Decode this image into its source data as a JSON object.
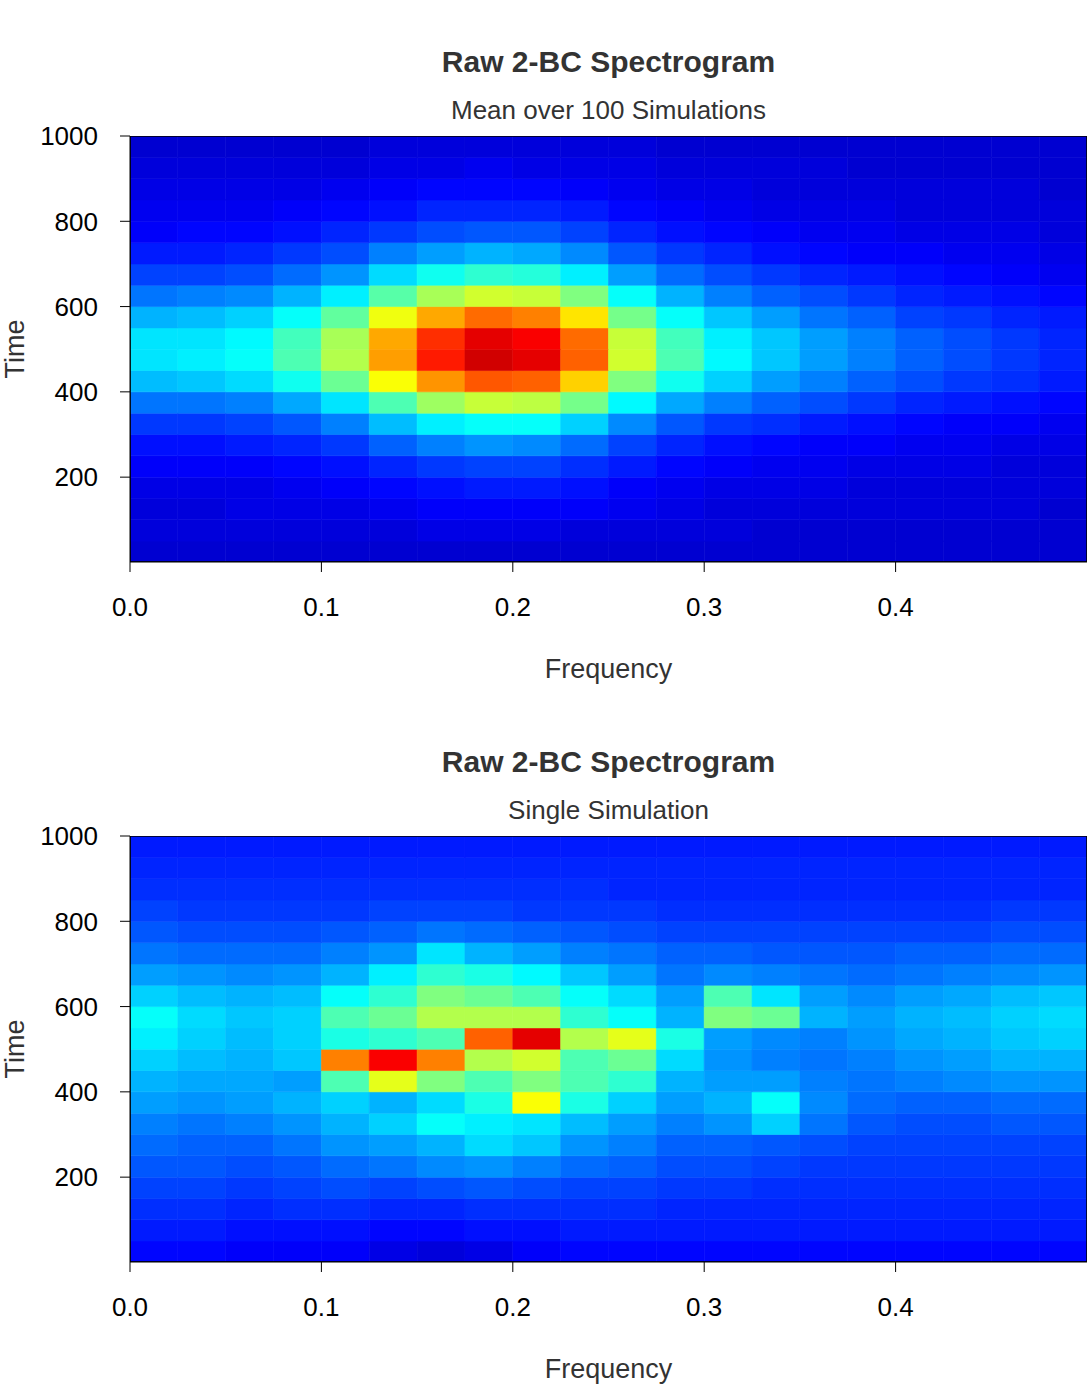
{
  "chart_data": [
    {
      "type": "heatmap",
      "title": "Raw 2-BC Spectrogram",
      "subtitle": "Mean over 100 Simulations",
      "x_label": "Frequency",
      "y_label": "Time",
      "xlim": [
        0,
        0.5
      ],
      "ylim": [
        1,
        1000
      ],
      "xticks": [
        {
          "value": 0,
          "label": "0.0"
        },
        0.1,
        0.2,
        0.3,
        0.4
      ],
      "yticks": [
        200,
        400,
        600,
        800,
        1000
      ],
      "x_edges": [
        0,
        0.025,
        0.05,
        0.075,
        0.1,
        0.125,
        0.15,
        0.175,
        0.2,
        0.225,
        0.25,
        0.275,
        0.3,
        0.325,
        0.35,
        0.375,
        0.4,
        0.425,
        0.45,
        0.475,
        0.5
      ],
      "y_edges": [
        0,
        50,
        100,
        150,
        200,
        250,
        300,
        350,
        400,
        450,
        500,
        550,
        600,
        650,
        700,
        750,
        800,
        850,
        900,
        950,
        1000
      ],
      "zlim": [
        0,
        1
      ],
      "z": [
        [
          0.08,
          0.08,
          0.08,
          0.08,
          0.08,
          0.08,
          0.08,
          0.08,
          0.08,
          0.08,
          0.08,
          0.08,
          0.08,
          0.08,
          0.08,
          0.08,
          0.08,
          0.08,
          0.08,
          0.08
        ],
        [
          0.09,
          0.09,
          0.09,
          0.09,
          0.09,
          0.09,
          0.1,
          0.1,
          0.1,
          0.09,
          0.09,
          0.09,
          0.09,
          0.08,
          0.08,
          0.08,
          0.08,
          0.08,
          0.08,
          0.08
        ],
        [
          0.09,
          0.09,
          0.1,
          0.1,
          0.1,
          0.11,
          0.12,
          0.12,
          0.12,
          0.12,
          0.11,
          0.1,
          0.09,
          0.09,
          0.09,
          0.09,
          0.09,
          0.09,
          0.09,
          0.08
        ],
        [
          0.1,
          0.1,
          0.1,
          0.11,
          0.12,
          0.13,
          0.14,
          0.15,
          0.15,
          0.14,
          0.12,
          0.11,
          0.1,
          0.1,
          0.1,
          0.09,
          0.09,
          0.09,
          0.09,
          0.09
        ],
        [
          0.12,
          0.12,
          0.12,
          0.13,
          0.14,
          0.16,
          0.18,
          0.19,
          0.19,
          0.17,
          0.15,
          0.13,
          0.12,
          0.11,
          0.11,
          0.1,
          0.1,
          0.1,
          0.09,
          0.09
        ],
        [
          0.14,
          0.14,
          0.15,
          0.16,
          0.18,
          0.22,
          0.25,
          0.27,
          0.26,
          0.23,
          0.19,
          0.16,
          0.14,
          0.13,
          0.12,
          0.12,
          0.11,
          0.11,
          0.1,
          0.1
        ],
        [
          0.18,
          0.18,
          0.19,
          0.21,
          0.25,
          0.31,
          0.36,
          0.38,
          0.38,
          0.33,
          0.26,
          0.21,
          0.18,
          0.17,
          0.15,
          0.14,
          0.13,
          0.12,
          0.12,
          0.11
        ],
        [
          0.24,
          0.24,
          0.25,
          0.29,
          0.35,
          0.45,
          0.53,
          0.57,
          0.56,
          0.49,
          0.37,
          0.29,
          0.25,
          0.22,
          0.2,
          0.18,
          0.16,
          0.15,
          0.14,
          0.13
        ],
        [
          0.31,
          0.32,
          0.34,
          0.39,
          0.48,
          0.62,
          0.73,
          0.79,
          0.78,
          0.67,
          0.5,
          0.39,
          0.33,
          0.28,
          0.25,
          0.22,
          0.2,
          0.18,
          0.17,
          0.15
        ],
        [
          0.35,
          0.36,
          0.38,
          0.45,
          0.55,
          0.72,
          0.85,
          0.92,
          0.9,
          0.78,
          0.58,
          0.45,
          0.37,
          0.32,
          0.28,
          0.25,
          0.22,
          0.2,
          0.18,
          0.16
        ],
        [
          0.35,
          0.35,
          0.37,
          0.44,
          0.54,
          0.71,
          0.83,
          0.9,
          0.88,
          0.77,
          0.57,
          0.44,
          0.36,
          0.32,
          0.28,
          0.25,
          0.22,
          0.2,
          0.18,
          0.16
        ],
        [
          0.3,
          0.31,
          0.33,
          0.38,
          0.47,
          0.61,
          0.71,
          0.77,
          0.75,
          0.65,
          0.49,
          0.38,
          0.32,
          0.28,
          0.24,
          0.22,
          0.19,
          0.18,
          0.16,
          0.15
        ],
        [
          0.24,
          0.25,
          0.26,
          0.3,
          0.36,
          0.46,
          0.54,
          0.58,
          0.57,
          0.5,
          0.38,
          0.3,
          0.25,
          0.22,
          0.2,
          0.18,
          0.16,
          0.15,
          0.14,
          0.13
        ],
        [
          0.19,
          0.19,
          0.2,
          0.23,
          0.27,
          0.34,
          0.39,
          0.42,
          0.41,
          0.36,
          0.28,
          0.23,
          0.2,
          0.18,
          0.16,
          0.15,
          0.14,
          0.13,
          0.12,
          0.11
        ],
        [
          0.15,
          0.15,
          0.16,
          0.18,
          0.2,
          0.25,
          0.28,
          0.3,
          0.29,
          0.26,
          0.21,
          0.18,
          0.16,
          0.14,
          0.13,
          0.12,
          0.12,
          0.11,
          0.11,
          0.1
        ],
        [
          0.12,
          0.13,
          0.13,
          0.14,
          0.16,
          0.18,
          0.2,
          0.21,
          0.21,
          0.19,
          0.16,
          0.14,
          0.13,
          0.12,
          0.11,
          0.11,
          0.1,
          0.1,
          0.1,
          0.09
        ],
        [
          0.11,
          0.11,
          0.11,
          0.12,
          0.13,
          0.14,
          0.16,
          0.16,
          0.16,
          0.15,
          0.13,
          0.12,
          0.11,
          0.1,
          0.1,
          0.1,
          0.09,
          0.09,
          0.09,
          0.09
        ],
        [
          0.1,
          0.1,
          0.1,
          0.1,
          0.11,
          0.12,
          0.13,
          0.13,
          0.13,
          0.12,
          0.11,
          0.1,
          0.1,
          0.09,
          0.09,
          0.09,
          0.09,
          0.09,
          0.09,
          0.08
        ],
        [
          0.09,
          0.09,
          0.09,
          0.09,
          0.09,
          0.1,
          0.1,
          0.11,
          0.1,
          0.1,
          0.1,
          0.09,
          0.09,
          0.09,
          0.09,
          0.08,
          0.08,
          0.08,
          0.08,
          0.08
        ],
        [
          0.08,
          0.08,
          0.08,
          0.08,
          0.08,
          0.09,
          0.09,
          0.09,
          0.09,
          0.09,
          0.09,
          0.08,
          0.08,
          0.08,
          0.08,
          0.08,
          0.08,
          0.08,
          0.08,
          0.08
        ]
      ]
    },
    {
      "type": "heatmap",
      "title": "Raw 2-BC Spectrogram",
      "subtitle": "Single Simulation",
      "x_label": "Frequency",
      "y_label": "Time",
      "xlim": [
        0,
        0.5
      ],
      "ylim": [
        1,
        1000
      ],
      "xticks": [
        {
          "value": 0,
          "label": "0.0"
        },
        0.1,
        0.2,
        0.3,
        0.4
      ],
      "yticks": [
        200,
        400,
        600,
        800,
        1000
      ],
      "x_edges": [
        0,
        0.025,
        0.05,
        0.075,
        0.1,
        0.125,
        0.15,
        0.175,
        0.2,
        0.225,
        0.25,
        0.275,
        0.3,
        0.325,
        0.35,
        0.375,
        0.4,
        0.425,
        0.45,
        0.475,
        0.5
      ],
      "y_edges": [
        0,
        50,
        100,
        150,
        200,
        250,
        300,
        350,
        400,
        450,
        500,
        550,
        600,
        650,
        700,
        750,
        800,
        850,
        900,
        950,
        1000
      ],
      "zlim": [
        0,
        1
      ],
      "z": [
        [
          0.13,
          0.13,
          0.12,
          0.12,
          0.12,
          0.1,
          0.09,
          0.1,
          0.12,
          0.13,
          0.13,
          0.13,
          0.13,
          0.13,
          0.13,
          0.13,
          0.13,
          0.13,
          0.13,
          0.13
        ],
        [
          0.15,
          0.15,
          0.14,
          0.14,
          0.14,
          0.13,
          0.13,
          0.14,
          0.14,
          0.15,
          0.15,
          0.15,
          0.15,
          0.15,
          0.15,
          0.15,
          0.15,
          0.15,
          0.15,
          0.15
        ],
        [
          0.17,
          0.17,
          0.16,
          0.17,
          0.17,
          0.16,
          0.16,
          0.17,
          0.17,
          0.17,
          0.17,
          0.16,
          0.16,
          0.16,
          0.16,
          0.16,
          0.16,
          0.16,
          0.16,
          0.16
        ],
        [
          0.19,
          0.19,
          0.18,
          0.19,
          0.2,
          0.19,
          0.2,
          0.21,
          0.2,
          0.19,
          0.19,
          0.18,
          0.18,
          0.17,
          0.17,
          0.17,
          0.17,
          0.17,
          0.17,
          0.17
        ],
        [
          0.21,
          0.21,
          0.2,
          0.21,
          0.23,
          0.24,
          0.26,
          0.27,
          0.25,
          0.23,
          0.22,
          0.2,
          0.2,
          0.19,
          0.18,
          0.18,
          0.18,
          0.18,
          0.18,
          0.18
        ],
        [
          0.23,
          0.22,
          0.22,
          0.24,
          0.27,
          0.28,
          0.3,
          0.34,
          0.32,
          0.27,
          0.25,
          0.22,
          0.22,
          0.21,
          0.2,
          0.19,
          0.19,
          0.19,
          0.19,
          0.19
        ],
        [
          0.25,
          0.24,
          0.25,
          0.27,
          0.3,
          0.33,
          0.38,
          0.36,
          0.35,
          0.31,
          0.28,
          0.25,
          0.27,
          0.33,
          0.24,
          0.21,
          0.2,
          0.2,
          0.21,
          0.21
        ],
        [
          0.28,
          0.27,
          0.28,
          0.3,
          0.33,
          0.3,
          0.34,
          0.4,
          0.62,
          0.4,
          0.33,
          0.28,
          0.3,
          0.38,
          0.26,
          0.23,
          0.22,
          0.22,
          0.23,
          0.23
        ],
        [
          0.3,
          0.29,
          0.29,
          0.28,
          0.45,
          0.6,
          0.5,
          0.45,
          0.5,
          0.45,
          0.42,
          0.3,
          0.28,
          0.28,
          0.25,
          0.24,
          0.25,
          0.26,
          0.27,
          0.27
        ],
        [
          0.33,
          0.31,
          0.3,
          0.32,
          0.75,
          0.88,
          0.75,
          0.55,
          0.58,
          0.45,
          0.48,
          0.34,
          0.27,
          0.25,
          0.24,
          0.25,
          0.27,
          0.28,
          0.3,
          0.3
        ],
        [
          0.36,
          0.33,
          0.31,
          0.33,
          0.4,
          0.42,
          0.45,
          0.78,
          0.9,
          0.55,
          0.6,
          0.4,
          0.28,
          0.26,
          0.25,
          0.27,
          0.29,
          0.3,
          0.32,
          0.33
        ],
        [
          0.38,
          0.34,
          0.32,
          0.33,
          0.45,
          0.48,
          0.55,
          0.55,
          0.55,
          0.42,
          0.38,
          0.3,
          0.5,
          0.48,
          0.3,
          0.28,
          0.3,
          0.31,
          0.33,
          0.34
        ],
        [
          0.33,
          0.31,
          0.3,
          0.31,
          0.38,
          0.42,
          0.5,
          0.48,
          0.45,
          0.38,
          0.34,
          0.28,
          0.45,
          0.35,
          0.28,
          0.26,
          0.28,
          0.29,
          0.31,
          0.32
        ],
        [
          0.28,
          0.27,
          0.26,
          0.27,
          0.3,
          0.36,
          0.42,
          0.4,
          0.37,
          0.32,
          0.28,
          0.24,
          0.26,
          0.25,
          0.24,
          0.23,
          0.24,
          0.25,
          0.26,
          0.27
        ],
        [
          0.24,
          0.23,
          0.23,
          0.23,
          0.25,
          0.27,
          0.35,
          0.3,
          0.28,
          0.25,
          0.24,
          0.22,
          0.22,
          0.21,
          0.21,
          0.21,
          0.22,
          0.22,
          0.23,
          0.23
        ],
        [
          0.21,
          0.2,
          0.2,
          0.2,
          0.21,
          0.22,
          0.24,
          0.23,
          0.22,
          0.21,
          0.2,
          0.19,
          0.19,
          0.19,
          0.19,
          0.19,
          0.19,
          0.19,
          0.2,
          0.2
        ],
        [
          0.19,
          0.18,
          0.18,
          0.18,
          0.18,
          0.19,
          0.19,
          0.19,
          0.18,
          0.18,
          0.18,
          0.17,
          0.17,
          0.17,
          0.17,
          0.17,
          0.17,
          0.17,
          0.18,
          0.18
        ],
        [
          0.17,
          0.17,
          0.17,
          0.17,
          0.17,
          0.17,
          0.17,
          0.17,
          0.17,
          0.17,
          0.16,
          0.16,
          0.16,
          0.16,
          0.16,
          0.16,
          0.16,
          0.16,
          0.16,
          0.16
        ],
        [
          0.16,
          0.16,
          0.16,
          0.16,
          0.16,
          0.16,
          0.16,
          0.16,
          0.16,
          0.16,
          0.16,
          0.16,
          0.16,
          0.16,
          0.16,
          0.16,
          0.16,
          0.16,
          0.16,
          0.16
        ],
        [
          0.15,
          0.15,
          0.15,
          0.15,
          0.15,
          0.15,
          0.15,
          0.15,
          0.15,
          0.15,
          0.15,
          0.15,
          0.15,
          0.15,
          0.15,
          0.15,
          0.15,
          0.15,
          0.15,
          0.15
        ]
      ]
    }
  ]
}
